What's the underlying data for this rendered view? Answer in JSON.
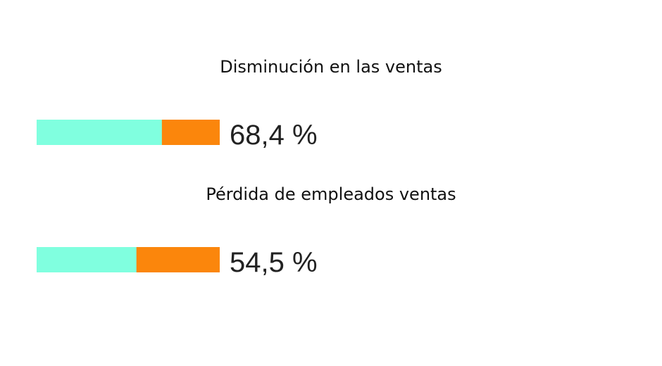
{
  "chart_data": [
    {
      "type": "progress",
      "title": "Disminución en las ventas",
      "values": [
        68.4
      ],
      "value_labels": [
        "68,4 %"
      ],
      "xlim": [
        0,
        100
      ],
      "color": "#80ffdf",
      "background_color": "#fb860c"
    },
    {
      "type": "progress",
      "title": "Pérdida de empleados ventas",
      "values": [
        54.5
      ],
      "value_labels": [
        "54,5 %"
      ],
      "xlim": [
        0,
        100
      ],
      "color": "#80ffdf",
      "background_color": "#fb860c"
    }
  ]
}
